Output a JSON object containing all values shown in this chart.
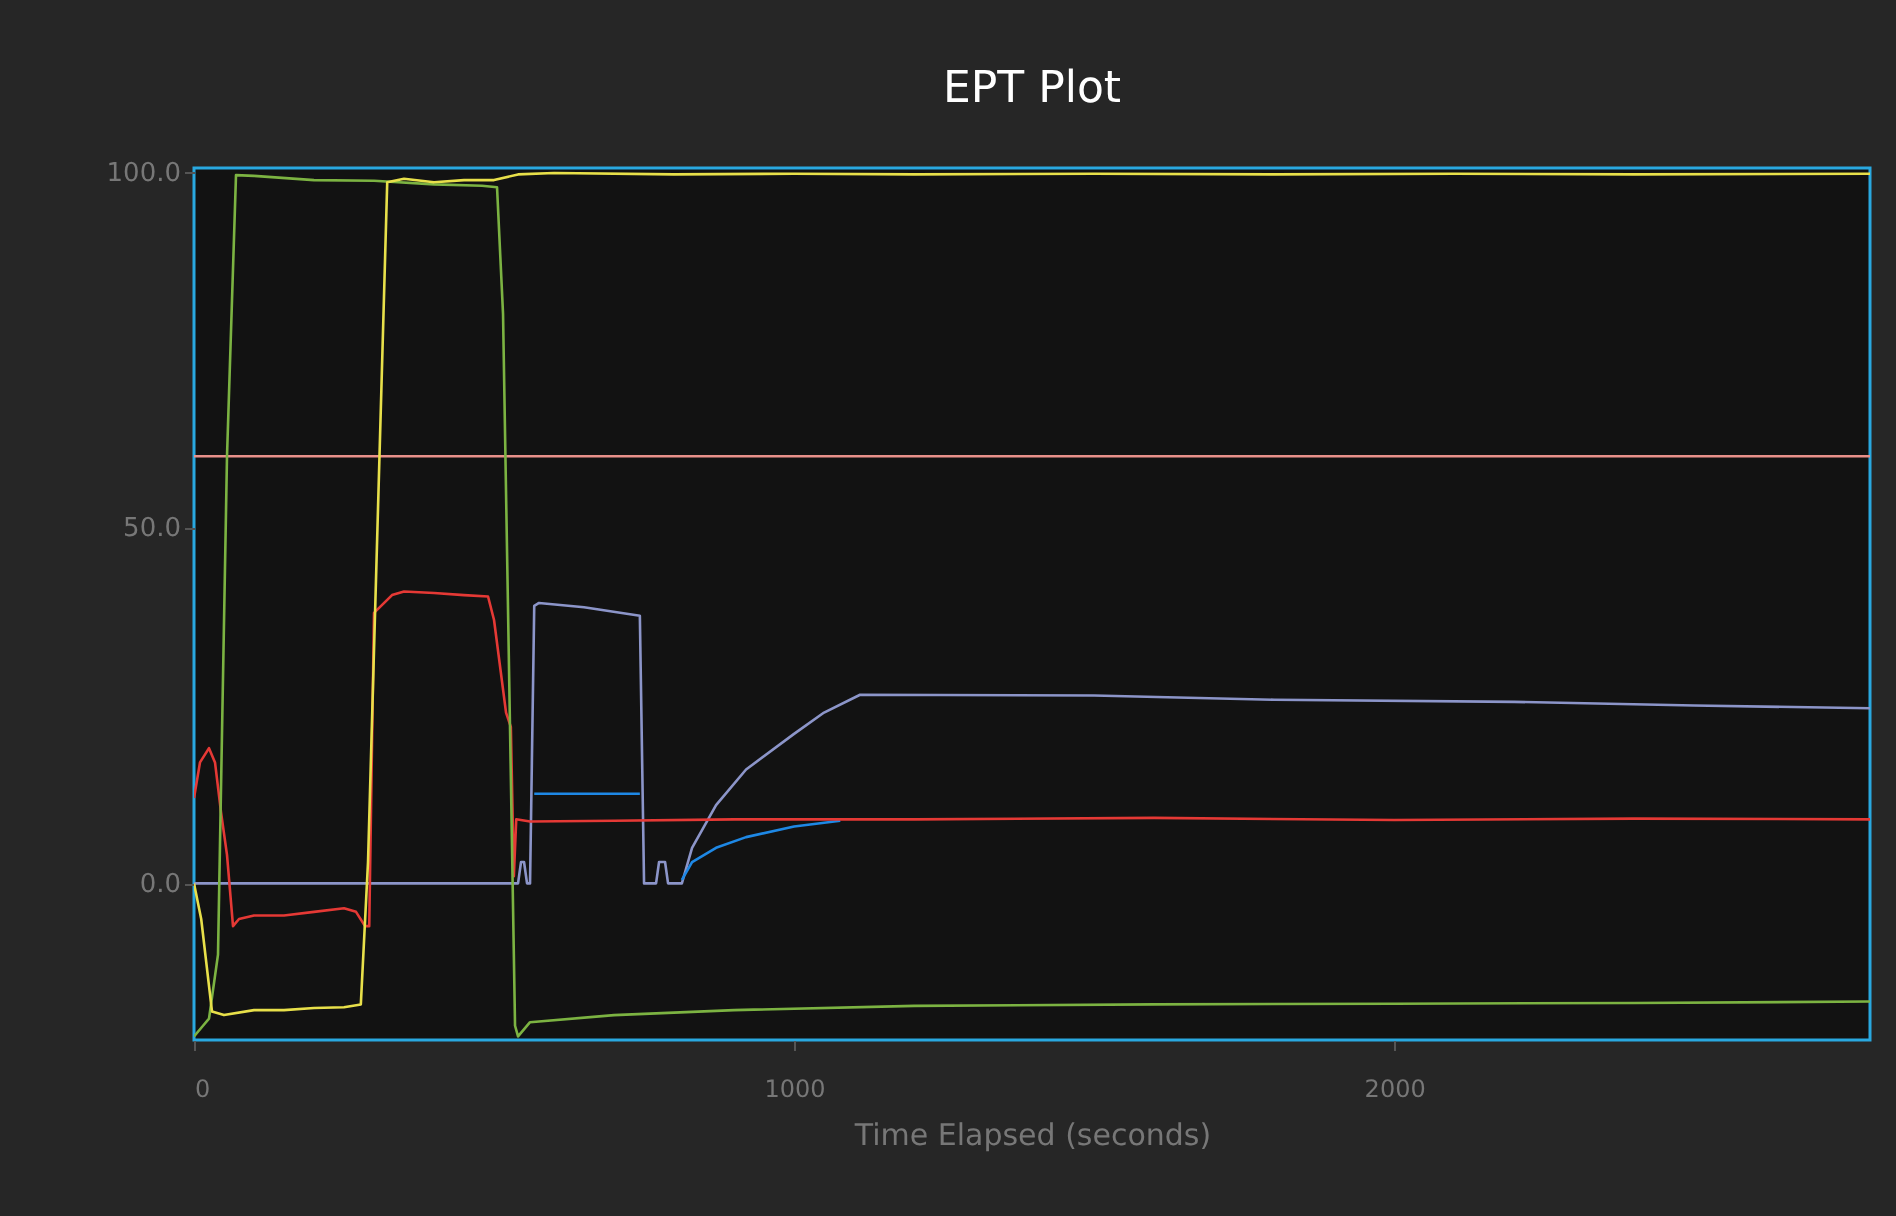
{
  "chart_data": {
    "type": "line",
    "title": "EPT Plot",
    "xlabel": "Time Elapsed (seconds)",
    "xlim": [
      0,
      2793
    ],
    "ylim": [
      -22,
      100.5
    ],
    "xticks": [
      0,
      1000,
      2000
    ],
    "yticks": [
      {
        "value": 0,
        "label": "0.0"
      },
      {
        "value": 50,
        "label": "50.0"
      },
      {
        "value": 100,
        "label": "100.0"
      }
    ],
    "grid": false,
    "legend": false,
    "line_style": "solid",
    "marker": "none",
    "series": [
      {
        "color": "#e8908a",
        "x": [
          0,
          2793
        ],
        "values": [
          60,
          60
        ]
      },
      {
        "color": "#8c95c9",
        "x": [
          0,
          540,
          545,
          550,
          555,
          560,
          567,
          575,
          650,
          743,
          750,
          770,
          775,
          785,
          790,
          813,
          830,
          870,
          920,
          1000,
          1050,
          1110,
          1500,
          1800,
          2200,
          2500,
          2793
        ],
        "values": [
          0,
          0,
          3,
          3,
          0,
          0,
          39,
          39.4,
          38.8,
          37.6,
          0,
          0,
          3,
          3,
          0,
          0,
          5,
          11,
          16,
          21,
          24,
          26.5,
          26.4,
          25.8,
          25.5,
          25,
          24.6
        ]
      },
      {
        "color": "#1e88e5",
        "x": [
          567,
          650,
          743,
          750,
          813,
          830,
          870,
          920,
          1000,
          1077
        ],
        "values": [
          12.6,
          12.6,
          12.6,
          null,
          0.5,
          3,
          5,
          6.5,
          8,
          8.8
        ]
      },
      {
        "color": "#e53935",
        "x": [
          0,
          10,
          25,
          35,
          45,
          55,
          65,
          75,
          100,
          150,
          200,
          250,
          270,
          285,
          292,
          300,
          330,
          350,
          400,
          450,
          490,
          500,
          520,
          528,
          533,
          537,
          560,
          700,
          900,
          1200,
          1600,
          2000,
          2400,
          2793
        ],
        "values": [
          12,
          17,
          19,
          17,
          10,
          4,
          -6,
          -5,
          -4.5,
          -4.5,
          -4,
          -3.5,
          -4,
          -6,
          -6,
          38,
          40.5,
          41,
          40.8,
          40.5,
          40.3,
          37,
          24,
          22,
          1,
          9,
          8.7,
          8.8,
          9,
          9,
          9.2,
          8.9,
          9.1,
          9
        ]
      },
      {
        "color": "#7cb342",
        "x": [
          0,
          15,
          25,
          40,
          55,
          70,
          100,
          200,
          300,
          400,
          480,
          505,
          515,
          535,
          540,
          560,
          700,
          900,
          1200,
          1600,
          2000,
          2400,
          2793
        ],
        "values": [
          -21.5,
          -20,
          -19,
          -10,
          60,
          99.5,
          99.4,
          98.8,
          98.7,
          98.2,
          98,
          97.8,
          80,
          -20,
          -21.5,
          -19.5,
          -18.5,
          -17.8,
          -17.2,
          -17,
          -16.9,
          -16.8,
          -16.6
        ]
      },
      {
        "color": "#e8e04a",
        "x": [
          0,
          12,
          30,
          50,
          100,
          150,
          200,
          250,
          278,
          290,
          322,
          350,
          400,
          450,
          500,
          540,
          600,
          800,
          1000,
          1200,
          1500,
          1800,
          2100,
          2400,
          2793
        ],
        "values": [
          0,
          -5,
          -18,
          -18.5,
          -17.8,
          -17.8,
          -17.5,
          -17.4,
          -17,
          3,
          98.5,
          99,
          98.5,
          98.8,
          98.8,
          99.6,
          99.8,
          99.6,
          99.7,
          99.6,
          99.7,
          99.6,
          99.7,
          99.6,
          99.7
        ]
      }
    ]
  }
}
